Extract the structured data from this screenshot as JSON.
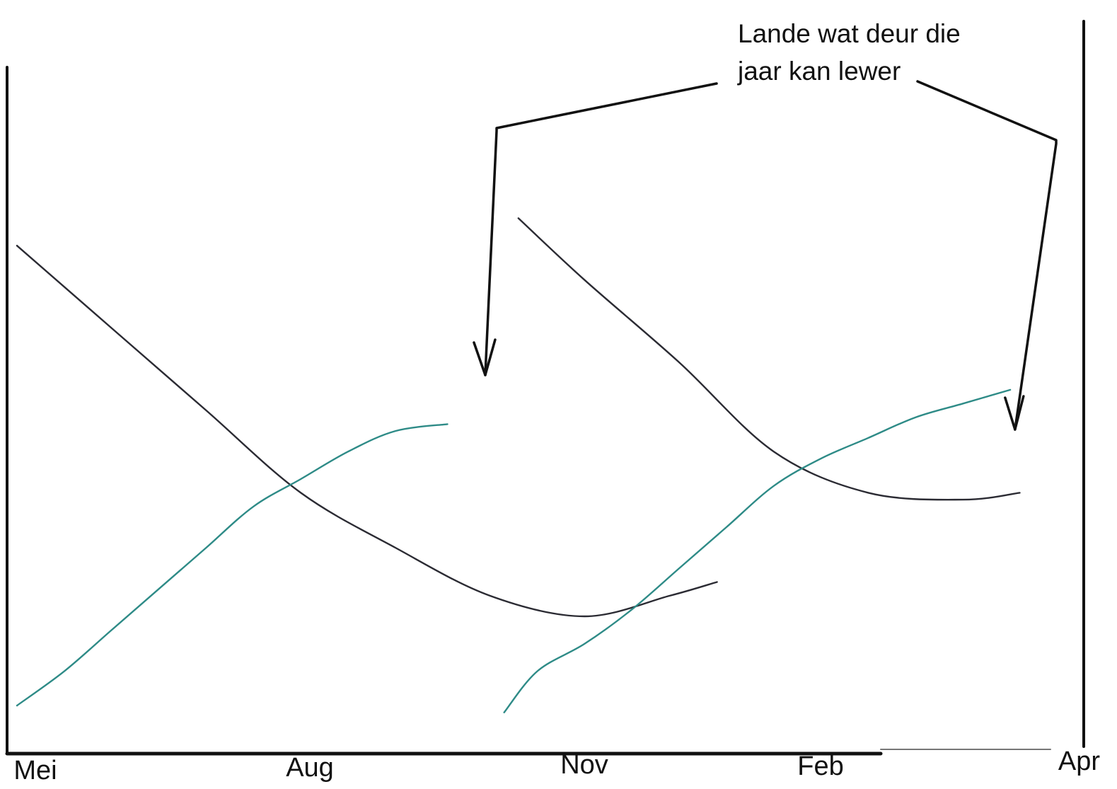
{
  "chart_data": {
    "type": "line",
    "title": "",
    "xlabel": "",
    "ylabel": "",
    "categories": [
      "Mei",
      "Aug",
      "Nov",
      "Feb",
      "Apr"
    ],
    "xlim": [
      0,
      11
    ],
    "ylim": [
      0,
      100
    ],
    "grid": false,
    "series": [
      {
        "color": "#2b2b33",
        "segments": [
          {
            "x": [
              0,
              1,
              2,
              3,
              4,
              5,
              6,
              6.9,
              7.4
            ],
            "y": [
              74,
              62,
              50,
              38,
              30,
              23,
              20,
              23,
              25
            ]
          },
          {
            "x": [
              5.3,
              6,
              7,
              8,
              9,
              10,
              10.6
            ],
            "y": [
              78,
              69,
              57,
              44,
              38,
              37,
              38
            ]
          }
        ]
      },
      {
        "color": "#2e8b87",
        "segments": [
          {
            "x": [
              0,
              0.5,
              1,
              1.5,
              2,
              2.5,
              3,
              3.5,
              4,
              4.55
            ],
            "y": [
              7,
              12,
              18,
              24,
              30,
              36,
              40,
              44,
              47,
              48
            ]
          },
          {
            "x": [
              5.15,
              5.5,
              6,
              6.5,
              7,
              7.5,
              8,
              8.5,
              9,
              9.5,
              10,
              10.5
            ],
            "y": [
              6,
              12,
              16,
              21,
              27,
              33,
              39,
              43,
              46,
              49,
              51,
              53
            ]
          }
        ]
      }
    ],
    "annotations": [
      {
        "text_lines": [
          "Lande wat  deur die",
          "jaar kan lewer"
        ],
        "points_to_x": [
          4.95,
          10.55
        ]
      }
    ],
    "styles": {
      "axis_color": "#111111",
      "annotation_color": "#111111"
    }
  }
}
